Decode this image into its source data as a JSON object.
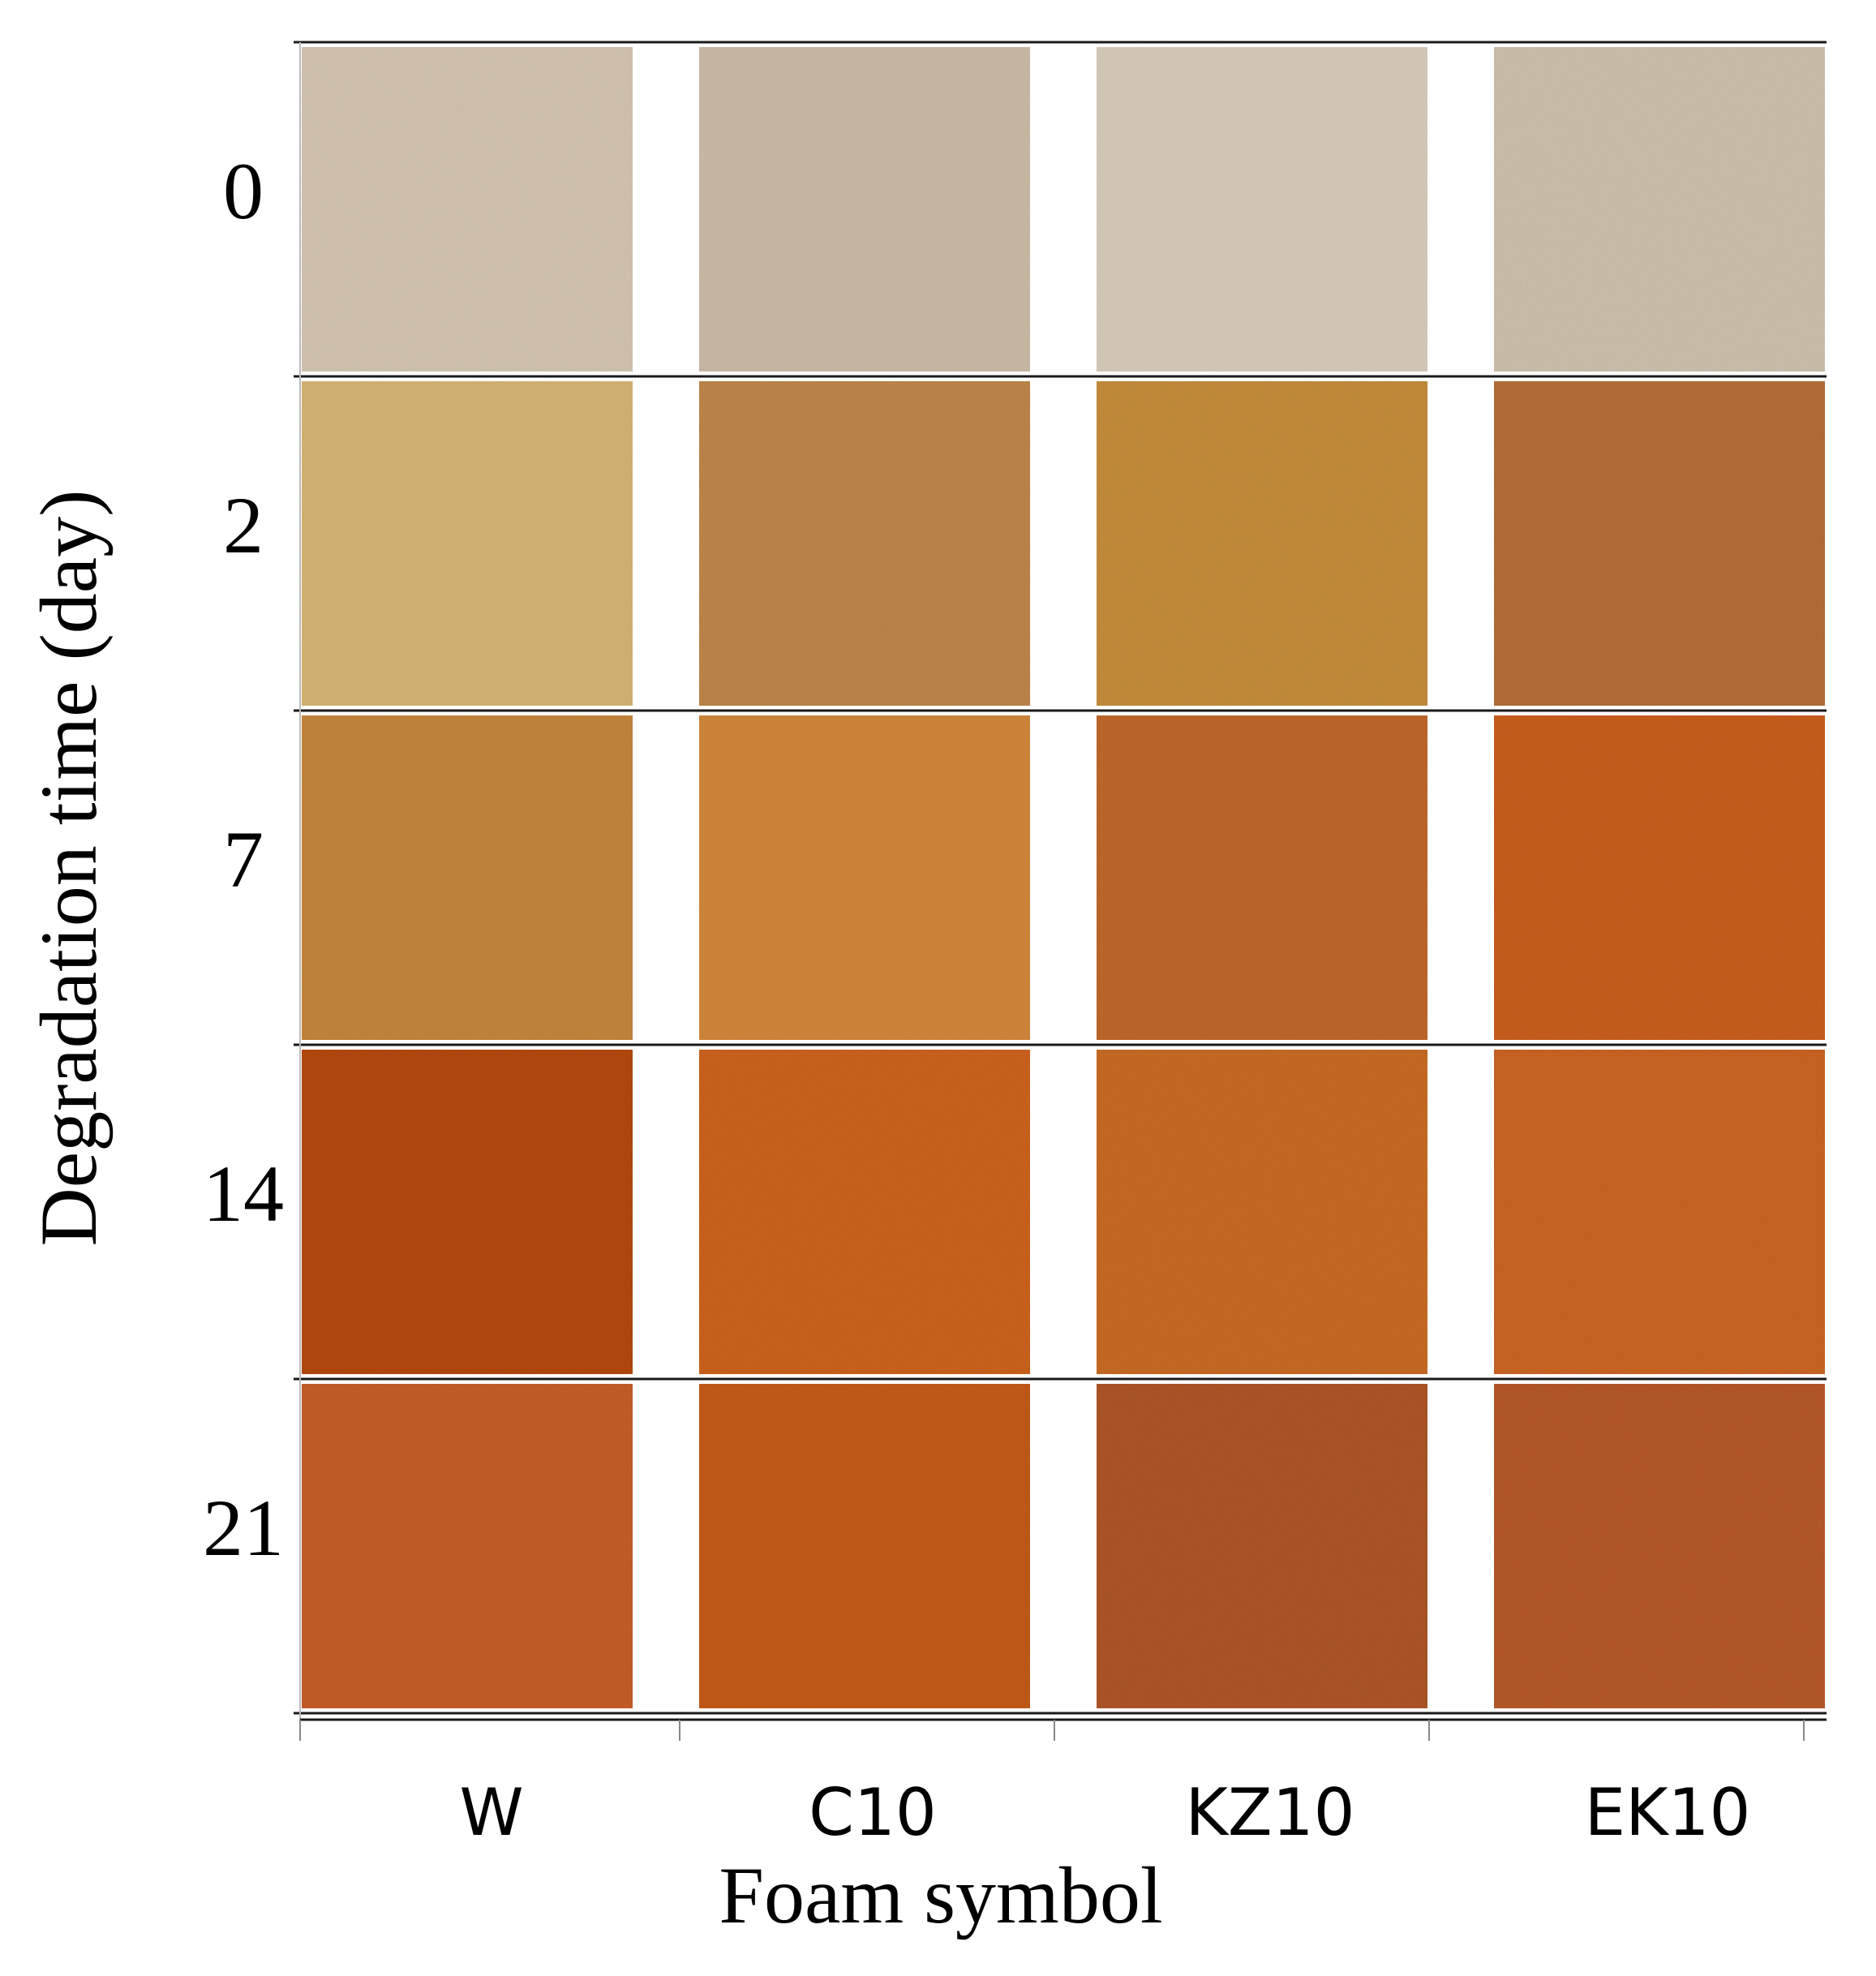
{
  "chart_data": {
    "type": "heatmap",
    "xlabel": "Foam symbol",
    "ylabel": "Degradation time (day)",
    "categories": [
      "W",
      "C10",
      "KZ10",
      "EK10"
    ],
    "rows": [
      {
        "day": "0",
        "colors": [
          "#d7c9b4",
          "#cfbfaa",
          "#dcd0bf",
          "#d2c4b0"
        ]
      },
      {
        "day": "2",
        "colors": [
          "#dab878",
          "#c1884e",
          "#c9903c",
          "#b7713b"
        ]
      },
      {
        "day": "7",
        "colors": [
          "#c8883c",
          "#d58a3e",
          "#c26a2e",
          "#cd6120"
        ]
      },
      {
        "day": "14",
        "colors": [
          "#b84c16",
          "#d06520",
          "#cc6d28",
          "#cd6727"
        ]
      },
      {
        "day": "21",
        "colors": [
          "#c9612a",
          "#c75d1c",
          "#b0592b",
          "#b95b2c"
        ]
      }
    ]
  }
}
